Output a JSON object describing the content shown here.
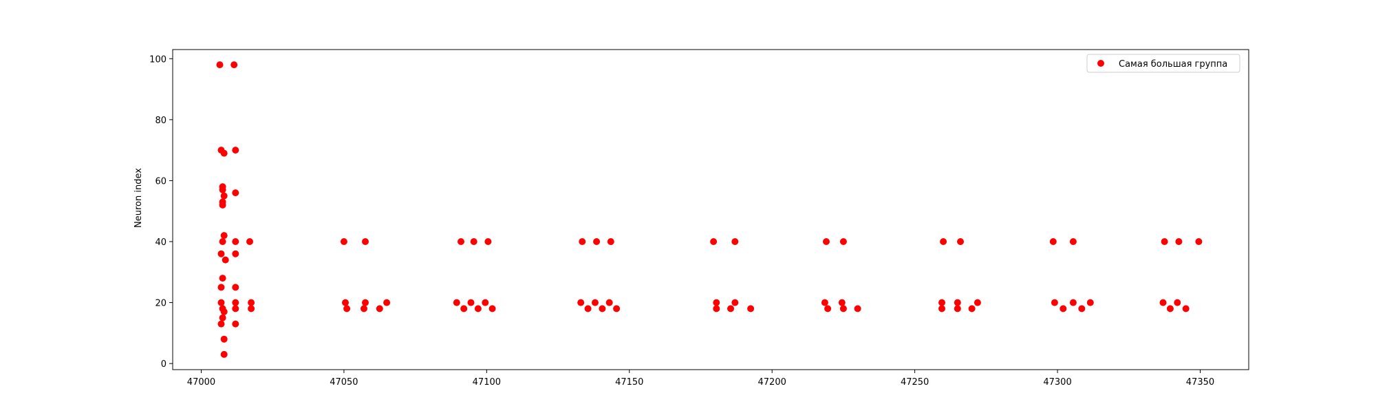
{
  "chart_data": {
    "type": "scatter",
    "title": "",
    "xlabel": "",
    "ylabel": "Neuron index",
    "xlim": [
      46990,
      47367
    ],
    "ylim": [
      -2,
      103
    ],
    "xticks": [
      47000,
      47050,
      47100,
      47150,
      47200,
      47250,
      47300,
      47350
    ],
    "yticks": [
      0,
      20,
      40,
      60,
      80,
      100
    ],
    "grid": false,
    "legend_position": "top-right",
    "series": [
      {
        "name": "Самая большая группа",
        "color": "#ff0000",
        "marker": "circle",
        "points": [
          [
            47006.5,
            98
          ],
          [
            47011.5,
            98
          ],
          [
            47007,
            70
          ],
          [
            47008,
            69
          ],
          [
            47012,
            70
          ],
          [
            47007.5,
            58
          ],
          [
            47007.5,
            57
          ],
          [
            47008,
            55
          ],
          [
            47007.5,
            53
          ],
          [
            47007.5,
            52
          ],
          [
            47012,
            56
          ],
          [
            47008,
            42
          ],
          [
            47007.5,
            40
          ],
          [
            47012,
            40
          ],
          [
            47017,
            40
          ],
          [
            47007,
            36
          ],
          [
            47008.5,
            34
          ],
          [
            47012,
            36
          ],
          [
            47007.5,
            28
          ],
          [
            47007,
            25
          ],
          [
            47012,
            25
          ],
          [
            47007,
            20
          ],
          [
            47007.5,
            18
          ],
          [
            47008,
            17
          ],
          [
            47007.5,
            15
          ],
          [
            47007,
            13
          ],
          [
            47008,
            8
          ],
          [
            47008,
            3
          ],
          [
            47012,
            20
          ],
          [
            47012,
            18
          ],
          [
            47012,
            13
          ],
          [
            47017.5,
            20
          ],
          [
            47017.5,
            18
          ],
          [
            47050,
            40
          ],
          [
            47057.5,
            40
          ],
          [
            47050.5,
            20
          ],
          [
            47051,
            18
          ],
          [
            47057.5,
            20
          ],
          [
            47057,
            18
          ],
          [
            47062.5,
            18
          ],
          [
            47065,
            20
          ],
          [
            47091,
            40
          ],
          [
            47095.5,
            40
          ],
          [
            47100.5,
            40
          ],
          [
            47089.5,
            20
          ],
          [
            47092,
            18
          ],
          [
            47094.5,
            20
          ],
          [
            47097,
            18
          ],
          [
            47099.5,
            20
          ],
          [
            47102,
            18
          ],
          [
            47133.5,
            40
          ],
          [
            47138.5,
            40
          ],
          [
            47143.5,
            40
          ],
          [
            47133,
            20
          ],
          [
            47135.5,
            18
          ],
          [
            47138,
            20
          ],
          [
            47140.5,
            18
          ],
          [
            47143,
            20
          ],
          [
            47145.5,
            18
          ],
          [
            47179.5,
            40
          ],
          [
            47187,
            40
          ],
          [
            47180.5,
            20
          ],
          [
            47180.5,
            18
          ],
          [
            47185.5,
            18
          ],
          [
            47187,
            20
          ],
          [
            47192.5,
            18
          ],
          [
            47219,
            40
          ],
          [
            47225,
            40
          ],
          [
            47218.5,
            20
          ],
          [
            47219.5,
            18
          ],
          [
            47224.5,
            20
          ],
          [
            47225,
            18
          ],
          [
            47230,
            18
          ],
          [
            47260,
            40
          ],
          [
            47266,
            40
          ],
          [
            47259.5,
            20
          ],
          [
            47259.5,
            18
          ],
          [
            47265,
            20
          ],
          [
            47265,
            18
          ],
          [
            47270,
            18
          ],
          [
            47272,
            20
          ],
          [
            47298.5,
            40
          ],
          [
            47305.5,
            40
          ],
          [
            47299,
            20
          ],
          [
            47302,
            18
          ],
          [
            47305.5,
            20
          ],
          [
            47308.5,
            18
          ],
          [
            47311.5,
            20
          ],
          [
            47337.5,
            40
          ],
          [
            47342.5,
            40
          ],
          [
            47349.5,
            40
          ],
          [
            47337,
            20
          ],
          [
            47339.5,
            18
          ],
          [
            47342,
            20
          ],
          [
            47345,
            18
          ]
        ]
      }
    ]
  }
}
